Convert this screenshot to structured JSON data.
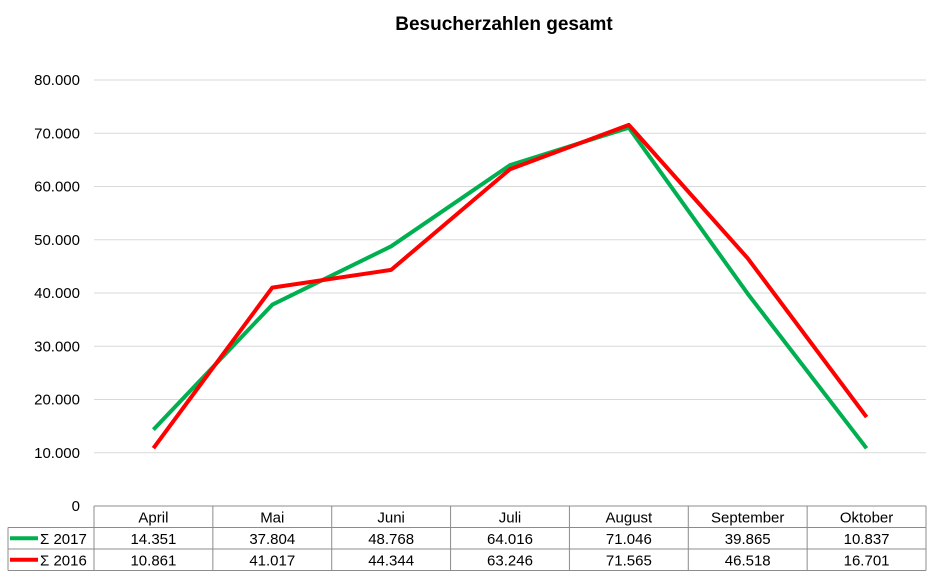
{
  "chart_data": {
    "type": "line",
    "title": "Besucherzahlen gesamt",
    "xlabel": "",
    "ylabel": "",
    "categories": [
      "April",
      "Mai",
      "Juni",
      "Juli",
      "August",
      "September",
      "Oktober"
    ],
    "ylim": [
      0,
      80000
    ],
    "yticks": [
      0,
      10000,
      20000,
      30000,
      40000,
      50000,
      60000,
      70000,
      80000
    ],
    "ytick_labels": [
      "0",
      "10.000",
      "20.000",
      "30.000",
      "40.000",
      "50.000",
      "60.000",
      "70.000",
      "80.000"
    ],
    "grid": true,
    "legend": "data-table",
    "series": [
      {
        "name": "Σ 2017",
        "color": "#00b050",
        "values": [
          14351,
          37804,
          48768,
          64016,
          71046,
          39865,
          10837
        ],
        "labels": [
          "14.351",
          "37.804",
          "48.768",
          "64.016",
          "71.046",
          "39.865",
          "10.837"
        ]
      },
      {
        "name": "Σ 2016",
        "color": "#ff0000",
        "values": [
          10861,
          41017,
          44344,
          63246,
          71565,
          46518,
          16701
        ],
        "labels": [
          "10.861",
          "41.017",
          "44.344",
          "63.246",
          "71.565",
          "46.518",
          "16.701"
        ]
      }
    ]
  }
}
